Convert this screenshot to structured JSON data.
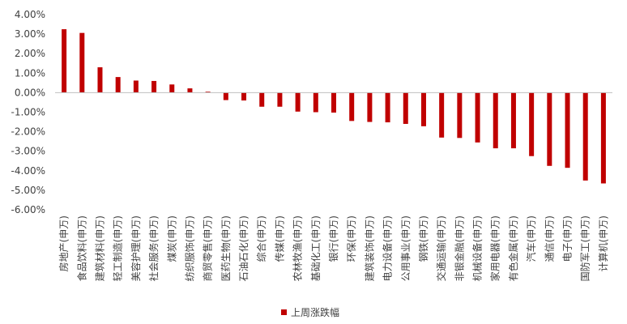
{
  "chart_data": {
    "type": "bar",
    "title": "",
    "xlabel": "",
    "ylabel": "",
    "ylim": [
      -6,
      4
    ],
    "yticks": [
      4,
      3,
      2,
      1,
      0,
      -1,
      -2,
      -3,
      -4,
      -5,
      -6
    ],
    "ytick_format": "percent_2dp",
    "grid": false,
    "legend_position": "bottom",
    "bar_color": "#c00000",
    "categories": [
      "房地产(申万)",
      "食品饮料(申万)",
      "建筑材料(申万)",
      "轻工制造(申万)",
      "美容护理(申万)",
      "社会服务(申万)",
      "煤炭(申万)",
      "纺织服饰(申万)",
      "商贸零售(申万)",
      "医药生物(申万)",
      "石油石化(申万)",
      "综合(申万)",
      "传媒(申万)",
      "农林牧渔(申万)",
      "基础化工(申万)",
      "银行(申万)",
      "环保(申万)",
      "建筑装饰(申万)",
      "电力设备(申万)",
      "公用事业(申万)",
      "钢铁(申万)",
      "交通运输(申万)",
      "非银金融(申万)",
      "机械设备(申万)",
      "家用电器(申万)",
      "有色金属(申万)",
      "汽车(申万)",
      "通信(申万)",
      "电子(申万)",
      "国防军工(申万)",
      "计算机(申万)"
    ],
    "series": [
      {
        "name": "上周涨跌幅",
        "values": [
          3.25,
          3.06,
          1.3,
          0.8,
          0.62,
          0.6,
          0.42,
          0.22,
          0.05,
          -0.38,
          -0.4,
          -0.72,
          -0.72,
          -0.97,
          -1.0,
          -1.02,
          -1.45,
          -1.5,
          -1.52,
          -1.6,
          -1.72,
          -2.3,
          -2.32,
          -2.55,
          -2.85,
          -2.85,
          -3.25,
          -3.75,
          -3.85,
          -4.5,
          -4.65
        ]
      }
    ]
  }
}
